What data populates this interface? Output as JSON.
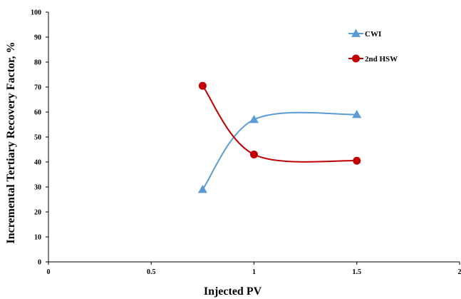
{
  "chart_data": {
    "type": "line",
    "title": "",
    "xlabel": "Injected PV",
    "ylabel": "Incremental Tertiary Recovery Factor, %",
    "xlim": [
      0,
      2
    ],
    "ylim": [
      0,
      100
    ],
    "x_ticks": [
      "0",
      "0.5",
      "1",
      "1.5",
      "2"
    ],
    "y_ticks": [
      "0",
      "10",
      "20",
      "30",
      "40",
      "50",
      "60",
      "70",
      "80",
      "90",
      "100"
    ],
    "x_tick_values": [
      0,
      0.5,
      1,
      1.5,
      2
    ],
    "y_tick_values": [
      0,
      10,
      20,
      30,
      40,
      50,
      60,
      70,
      80,
      90,
      100
    ],
    "grid": false,
    "legend_position": "top-right",
    "series": [
      {
        "name": "CWI",
        "color": "#5b9bd5",
        "marker": "triangle",
        "smooth": true,
        "x": [
          0.75,
          1.0,
          1.5
        ],
        "y": [
          29,
          57,
          59
        ]
      },
      {
        "name": "2nd HSW",
        "color": "#c00000",
        "marker": "circle",
        "smooth": true,
        "x": [
          0.75,
          1.0,
          1.5
        ],
        "y": [
          70.5,
          43,
          40.5
        ]
      }
    ]
  }
}
